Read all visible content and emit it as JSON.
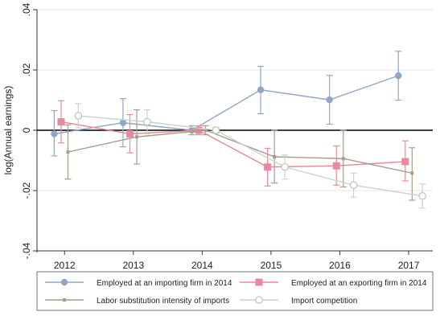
{
  "chart_data": {
    "type": "line",
    "title": "",
    "xlabel": "",
    "ylabel": "log(Annual earnings)",
    "x": [
      2012,
      2013,
      2014,
      2015,
      2016,
      2017
    ],
    "xticks": [
      "2012",
      "2013",
      "2014",
      "2015",
      "2016",
      "2017"
    ],
    "ylim": [
      -0.04,
      0.04
    ],
    "yticks": [
      {
        "value": -0.04,
        "label": "-.04"
      },
      {
        "value": -0.02,
        "label": "-.02"
      },
      {
        "value": 0,
        "label": "0"
      },
      {
        "value": 0.02,
        "label": ".02"
      },
      {
        "value": 0.04,
        "label": ".04"
      }
    ],
    "grid": true,
    "legend_position": "bottom",
    "series": [
      {
        "name": "Employed at an importing firm in 2014",
        "color": "#8fa7c5",
        "marker": "circle-filled",
        "x": [
          2011.85,
          2012.85,
          2013.85,
          2014.85,
          2015.85,
          2016.85
        ],
        "y": [
          -0.0012,
          0.0025,
          0.0,
          0.0134,
          0.0101,
          0.0181
        ],
        "ci_low": [
          -0.0085,
          -0.0055,
          -0.0015,
          0.0055,
          0.002,
          0.01
        ],
        "ci_high": [
          0.0065,
          0.0105,
          0.0015,
          0.0212,
          0.0182,
          0.0262
        ]
      },
      {
        "name": "Employed at an exporting firm in 2014",
        "color": "#e8899e",
        "marker": "square-filled",
        "x": [
          2011.95,
          2012.95,
          2013.95,
          2014.95,
          2015.95,
          2016.95
        ],
        "y": [
          0.0028,
          -0.0012,
          0.0,
          -0.0122,
          -0.0118,
          -0.0104
        ],
        "ci_low": [
          -0.0042,
          -0.0075,
          -0.0015,
          -0.0185,
          -0.0182,
          -0.0168
        ],
        "ci_high": [
          0.0098,
          0.0052,
          0.0015,
          -0.006,
          -0.0052,
          -0.0035
        ]
      },
      {
        "name": "Labor substitution intensity of imports",
        "color": "#a89c8a",
        "marker": "small-square",
        "x": [
          2012.05,
          2013.05,
          2014.05,
          2015.05,
          2016.05,
          2017.05
        ],
        "y": [
          -0.0072,
          -0.0022,
          0.0,
          -0.0088,
          -0.0094,
          -0.0142
        ],
        "ci_low": [
          -0.0162,
          -0.0112,
          -0.0015,
          -0.0175,
          -0.0188,
          -0.0232
        ],
        "ci_high": [
          0.0018,
          0.0068,
          0.0015,
          0.0,
          0.0,
          -0.0058
        ]
      },
      {
        "name": "Import competition",
        "color": "#c9d3cc",
        "marker": "circle-hollow",
        "x": [
          2012.2,
          2013.2,
          2014.2,
          2015.2,
          2016.2,
          2017.2
        ],
        "y": [
          0.0048,
          0.0028,
          0.0,
          -0.0122,
          -0.0182,
          -0.0218
        ],
        "ci_low": [
          0.0008,
          -0.0012,
          -0.001,
          -0.0162,
          -0.0222,
          -0.0258
        ],
        "ci_high": [
          0.0088,
          0.0068,
          0.001,
          -0.0082,
          -0.0142,
          -0.0178
        ]
      }
    ]
  }
}
